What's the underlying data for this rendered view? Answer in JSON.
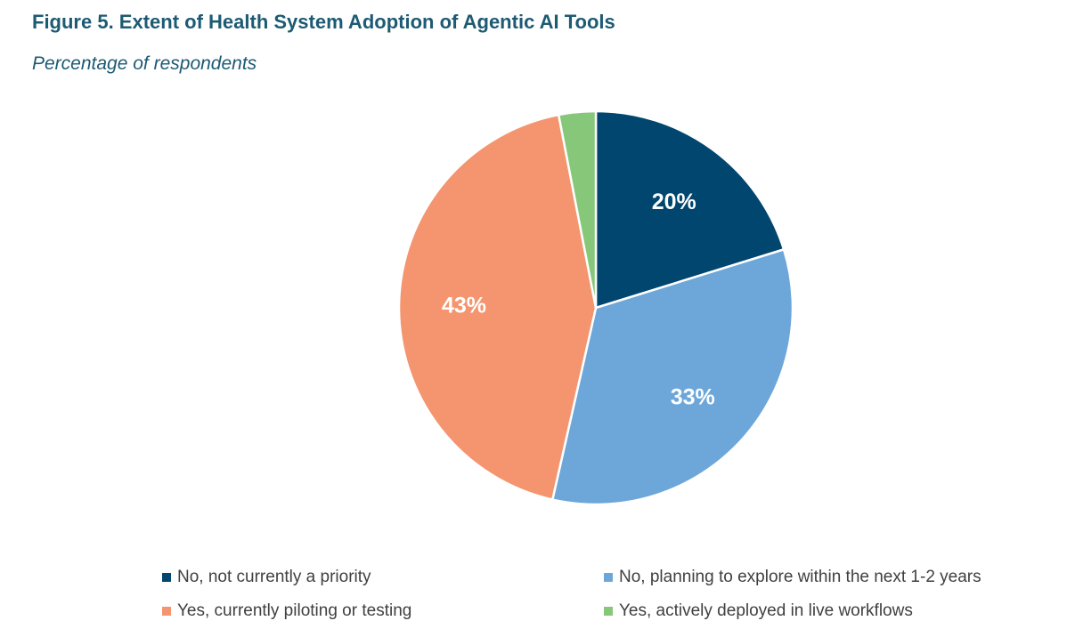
{
  "title": "Figure 5. Extent of Health System Adoption of Agentic AI Tools",
  "subtitle": "Percentage of respondents",
  "chart_data": {
    "type": "pie",
    "start": "12 o'clock",
    "direction": "clockwise",
    "slices": [
      {
        "label": "No, not currently a priority",
        "value": 20,
        "display": "20%",
        "color": "#00466f",
        "show_label": true
      },
      {
        "label": "No, planning to explore within the next 1-2 years",
        "value": 33,
        "display": "33%",
        "color": "#6da7d9",
        "show_label": true
      },
      {
        "label": "Yes, currently piloting or testing",
        "value": 43,
        "display": "43%",
        "color": "#f4956f",
        "show_label": true
      },
      {
        "label": "Yes, actively deployed in live workflows",
        "value": 3,
        "display": "3%",
        "color": "#86c77a",
        "show_label": false
      }
    ],
    "legend_position": "bottom"
  }
}
